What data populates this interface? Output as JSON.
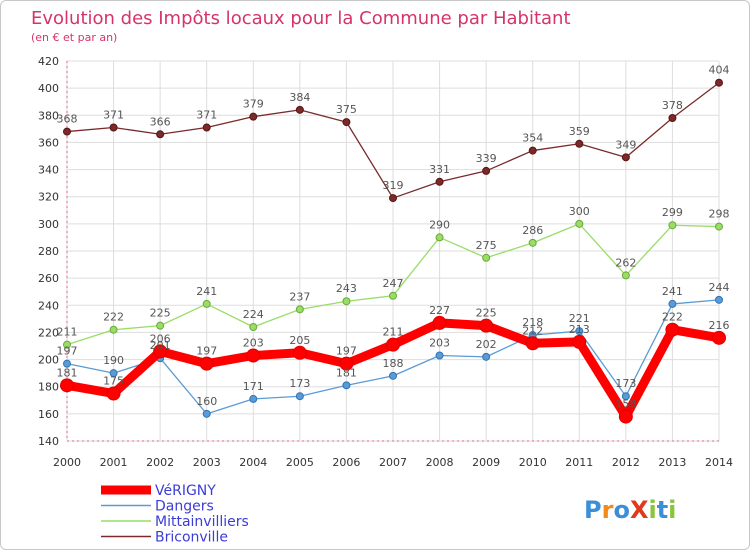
{
  "chart_data": {
    "type": "line",
    "title": "Evolution des Impôts locaux pour la Commune par Habitant",
    "subtitle": "(en € et par an)",
    "xlabel": "",
    "ylabel": "",
    "x": [
      "2000",
      "2001",
      "2002",
      "2003",
      "2004",
      "2005",
      "2006",
      "2007",
      "2008",
      "2009",
      "2010",
      "2011",
      "2012",
      "2013",
      "2014"
    ],
    "ylim": [
      140,
      420
    ],
    "yticks": [
      140,
      160,
      180,
      200,
      220,
      240,
      260,
      280,
      300,
      320,
      340,
      360,
      380,
      400,
      420
    ],
    "grid": true,
    "legend": "bottom-left",
    "series": [
      {
        "name": "VéRIGNY",
        "color": "#ff0000",
        "values": [
          181,
          175,
          206,
          197,
          203,
          205,
          197,
          211,
          227,
          225,
          212,
          213,
          158,
          222,
          216
        ],
        "labels": [
          "181",
          "175",
          "206",
          "197",
          "203",
          "205",
          "197",
          "211",
          "227",
          "225",
          "212",
          "213",
          "158",
          "222",
          "216"
        ]
      },
      {
        "name": "Dangers",
        "color": "#5b9bd5",
        "values": [
          197,
          190,
          201,
          160,
          171,
          173,
          181,
          188,
          203,
          202,
          218,
          221,
          173,
          241,
          244
        ],
        "labels": [
          "197",
          "190",
          "201",
          "160",
          "171",
          "173",
          "181",
          "188",
          "203",
          "202",
          "218",
          "221",
          "173",
          "241",
          "244"
        ]
      },
      {
        "name": "Mittainvilliers",
        "color": "#99dd66",
        "values": [
          211,
          222,
          225,
          241,
          224,
          237,
          243,
          247,
          290,
          275,
          286,
          300,
          262,
          299,
          298
        ],
        "labels": [
          "211",
          "222",
          "225",
          "241",
          "224",
          "237",
          "243",
          "247",
          "290",
          "275",
          "286",
          "300",
          "262",
          "299",
          "298"
        ]
      },
      {
        "name": "Briconville",
        "color": "#7a2a2a",
        "values": [
          368,
          371,
          366,
          371,
          379,
          384,
          375,
          319,
          331,
          339,
          354,
          359,
          349,
          378,
          404
        ],
        "labels": [
          "368",
          "371",
          "366",
          "371",
          "379",
          "384",
          "375",
          "319",
          "331",
          "339",
          "354",
          "359",
          "349",
          "378",
          "404"
        ]
      }
    ]
  },
  "brand": {
    "text": "ProXiti"
  }
}
